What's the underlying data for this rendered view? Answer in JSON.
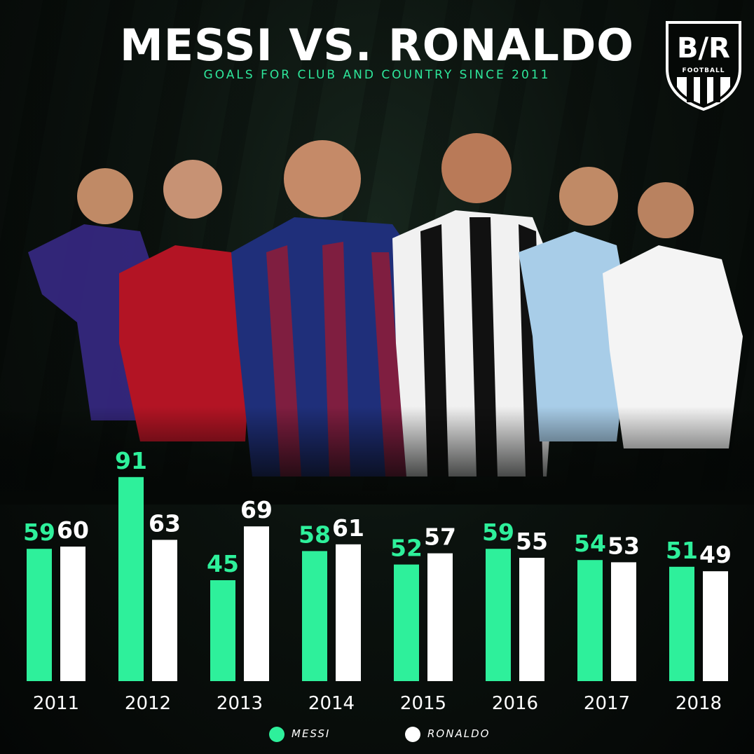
{
  "header": {
    "title": "MESSI VS. RONALDO",
    "subtitle": "GOALS FOR CLUB AND COUNTRY SINCE 2011"
  },
  "logo": {
    "text": "B/R",
    "subtext": "FOOTBALL"
  },
  "colors": {
    "messi": "#2ef09b",
    "ronaldo": "#ffffff",
    "accent": "#2ee79b",
    "background": "#0b120e"
  },
  "chart_data": {
    "type": "bar",
    "title": "MESSI VS. RONALDO",
    "subtitle": "GOALS FOR CLUB AND COUNTRY SINCE 2011",
    "categories": [
      "2011",
      "2012",
      "2013",
      "2014",
      "2015",
      "2016",
      "2017",
      "2018"
    ],
    "series": [
      {
        "name": "MESSI",
        "color": "#2ef09b",
        "values": [
          59,
          91,
          45,
          58,
          52,
          59,
          54,
          51
        ]
      },
      {
        "name": "RONALDO",
        "color": "#ffffff",
        "values": [
          60,
          63,
          69,
          61,
          57,
          55,
          53,
          49
        ]
      }
    ],
    "xlabel": "",
    "ylabel": "",
    "ylim": [
      0,
      100
    ],
    "grid": false,
    "legend": "bottom-center",
    "data_labels": true
  },
  "legend": {
    "items": [
      {
        "label": "MESSI",
        "color": "#2ef09b"
      },
      {
        "label": "RONALDO",
        "color": "#ffffff"
      }
    ]
  }
}
